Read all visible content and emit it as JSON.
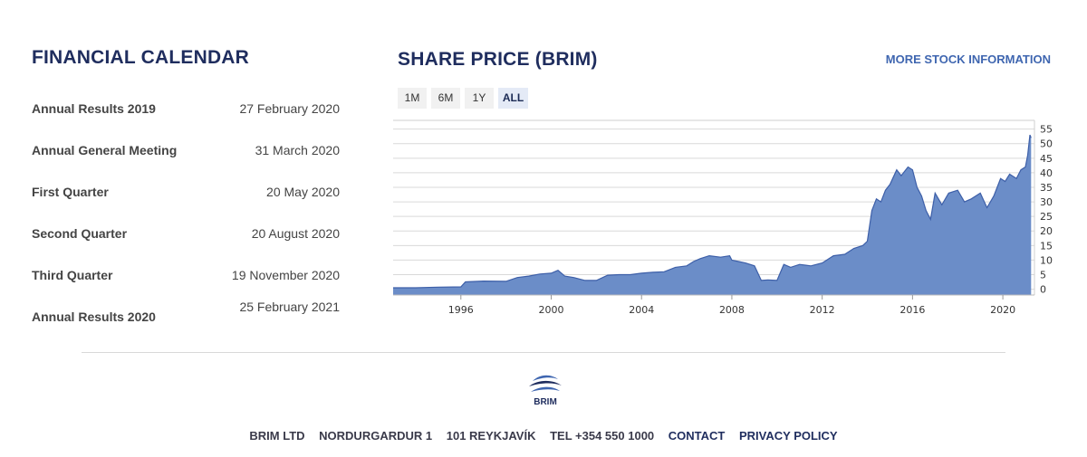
{
  "financial_calendar": {
    "title": "FINANCIAL CALENDAR",
    "events": [
      {
        "name": "Annual Results 2019",
        "date": "27 February 2020"
      },
      {
        "name": "Annual General Meeting",
        "date": "31 March 2020"
      },
      {
        "name": "First Quarter",
        "date": "20 May 2020"
      },
      {
        "name": "Second Quarter",
        "date": "20 August 2020"
      },
      {
        "name": "Third Quarter",
        "date": "19 November 2020"
      },
      {
        "name": "Annual Results 2020",
        "date": "25 February 2021"
      }
    ]
  },
  "share_price": {
    "title": "SHARE PRICE (BRIM)",
    "more_link": "MORE STOCK INFORMATION",
    "ranges": [
      "1M",
      "6M",
      "1Y",
      "ALL"
    ],
    "active_range": "ALL"
  },
  "chart_data": {
    "type": "area",
    "title": "",
    "xlabel": "",
    "ylabel": "",
    "x_ticks": [
      "1996",
      "2000",
      "2004",
      "2008",
      "2012",
      "2016",
      "2020"
    ],
    "y_ticks": [
      0,
      5,
      10,
      15,
      20,
      25,
      30,
      35,
      40,
      45,
      50,
      55
    ],
    "xlim": [
      1993.0,
      2021.4
    ],
    "ylim": [
      -2,
      58
    ],
    "grid": true,
    "color": "#6b8dc8",
    "line_color": "#3d5fa8",
    "series": [
      {
        "x": [
          1993.0,
          1993.5,
          1994.0,
          1995.0,
          1996.0,
          1996.2,
          1997.0,
          1998.0,
          1998.5,
          1999.0,
          1999.5,
          2000.0,
          2000.3,
          2000.6,
          2001.0,
          2001.5,
          2002.0,
          2002.5,
          2003.0,
          2003.5,
          2004.0,
          2004.5,
          2005.0,
          2005.5,
          2006.0,
          2006.3,
          2006.6,
          2007.0,
          2007.5,
          2007.9,
          2008.0,
          2008.3,
          2008.6,
          2009.0,
          2009.3,
          2009.6,
          2010.0,
          2010.3,
          2010.6,
          2011.0,
          2011.5,
          2012.0,
          2012.5,
          2013.0,
          2013.4,
          2013.8,
          2014.0,
          2014.2,
          2014.4,
          2014.6,
          2014.8,
          2015.0,
          2015.3,
          2015.5,
          2015.8,
          2016.0,
          2016.2,
          2016.4,
          2016.6,
          2016.8,
          2017.0,
          2017.3,
          2017.6,
          2018.0,
          2018.3,
          2018.6,
          2019.0,
          2019.3,
          2019.6,
          2019.9,
          2020.1,
          2020.3,
          2020.6,
          2020.8,
          2021.0,
          2021.1,
          2021.2,
          2021.25
        ],
        "y": [
          0.5,
          0.5,
          0.5,
          0.7,
          0.8,
          2.5,
          2.8,
          2.7,
          4.0,
          4.5,
          5.2,
          5.5,
          6.5,
          4.5,
          4.0,
          3.0,
          3.0,
          4.8,
          5.0,
          5.0,
          5.5,
          5.8,
          6.0,
          7.5,
          8.0,
          9.5,
          10.5,
          11.5,
          11.0,
          11.5,
          10.0,
          9.5,
          9.0,
          8.0,
          3.0,
          3.2,
          3.0,
          8.5,
          7.5,
          8.5,
          8.0,
          9.0,
          11.5,
          12.0,
          14.0,
          15.0,
          16.5,
          27.0,
          31.0,
          30.0,
          34.0,
          36.0,
          41.0,
          39.0,
          42.0,
          41.0,
          35.0,
          32.0,
          27.0,
          24.0,
          33.0,
          29.0,
          33.0,
          34.0,
          30.0,
          31.0,
          33.0,
          28.0,
          32.0,
          38.0,
          37.0,
          39.5,
          38.0,
          41.0,
          42.0,
          46.0,
          53.0,
          52.0
        ]
      }
    ]
  },
  "footer": {
    "logo_text": "BRIM",
    "items": [
      "BRIM LTD",
      "NORDURGARDUR 1",
      "101 REYKJAVÍK",
      "TEL +354 550 1000"
    ],
    "links": [
      "CONTACT",
      "PRIVACY POLICY"
    ]
  }
}
